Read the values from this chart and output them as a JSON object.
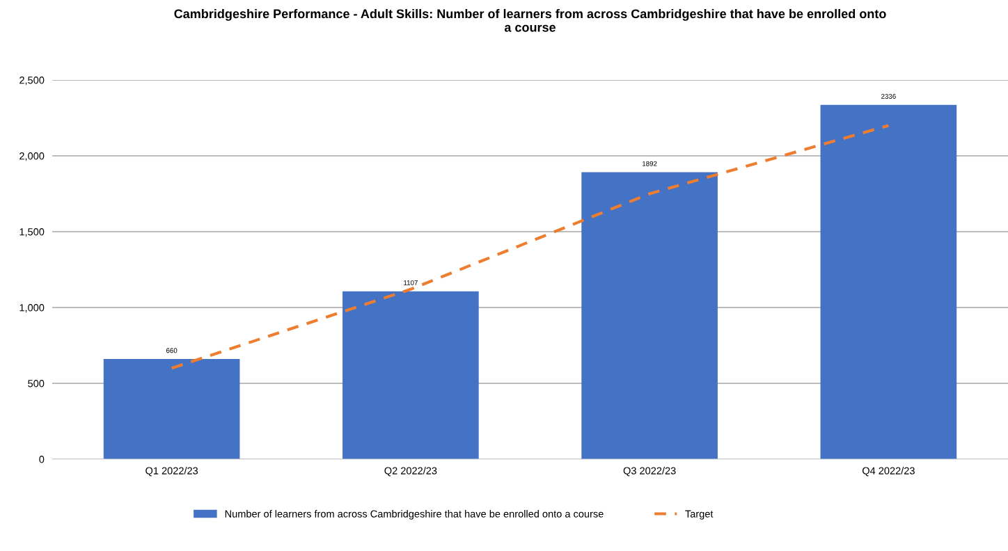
{
  "chart_data": {
    "type": "bar",
    "title": "Cambridgeshire Performance - Adult Skills: Number of learners from across Cambridgeshire that have be enrolled onto\na course",
    "categories": [
      "Q1 2022/23",
      "Q2 2022/23",
      "Q3 2022/23",
      "Q4 2022/23"
    ],
    "series": [
      {
        "name": "Number of learners from across Cambridgeshire that have be enrolled onto a course",
        "color": "#4472c4",
        "values": [
          660,
          1107,
          1892,
          2336
        ],
        "data_labels": true
      },
      {
        "name": "Target",
        "type": "line",
        "color": "#ed7d31",
        "line_style": "dashed",
        "marker": "none",
        "values": [
          600,
          1120,
          1750,
          2200
        ]
      }
    ],
    "ylim": [
      0,
      2500
    ],
    "yticks": [
      {
        "value": 0,
        "label": "0"
      },
      {
        "value": 500,
        "label": "500"
      },
      {
        "value": 1000,
        "label": "1,000"
      },
      {
        "value": 1500,
        "label": "1,500"
      },
      {
        "value": 2000,
        "label": "2,000"
      },
      {
        "value": 2500,
        "label": "2,500"
      }
    ],
    "grid": "y",
    "legend": "bottom"
  }
}
